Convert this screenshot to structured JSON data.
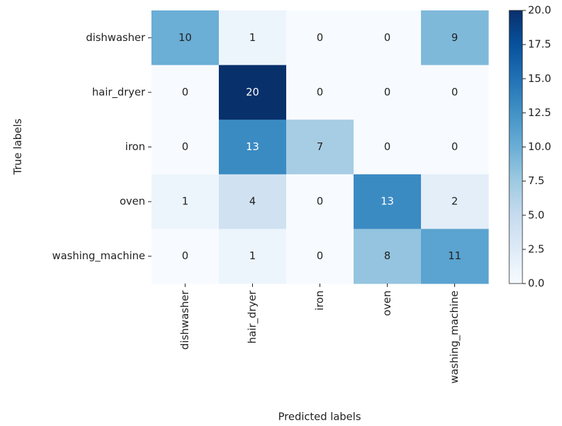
{
  "chart_data": {
    "type": "heatmap",
    "xlabel": "Predicted labels",
    "ylabel": "True labels",
    "x_categories": [
      "dishwasher",
      "hair_dryer",
      "iron",
      "oven",
      "washing_machine"
    ],
    "y_categories": [
      "dishwasher",
      "hair_dryer",
      "iron",
      "oven",
      "washing_machine"
    ],
    "values": [
      [
        10,
        1,
        0,
        0,
        9
      ],
      [
        0,
        20,
        0,
        0,
        0
      ],
      [
        0,
        13,
        7,
        0,
        0
      ],
      [
        1,
        4,
        0,
        13,
        2
      ],
      [
        0,
        1,
        0,
        8,
        11
      ]
    ],
    "colormap": [
      "#f7fbff",
      "#deebf7",
      "#c6dbef",
      "#9ecae1",
      "#6baed6",
      "#4292c6",
      "#2171b5",
      "#08519c",
      "#08306b"
    ],
    "clim": [
      0,
      20
    ],
    "cticks": [
      {
        "value": 0,
        "label": "0.0"
      },
      {
        "value": 2.5,
        "label": "2.5"
      },
      {
        "value": 5,
        "label": "5.0"
      },
      {
        "value": 7.5,
        "label": "7.5"
      },
      {
        "value": 10,
        "label": "10.0"
      },
      {
        "value": 12.5,
        "label": "12.5"
      },
      {
        "value": 15,
        "label": "15.0"
      },
      {
        "value": 17.5,
        "label": "17.5"
      },
      {
        "value": 20,
        "label": "20.0"
      }
    ]
  }
}
